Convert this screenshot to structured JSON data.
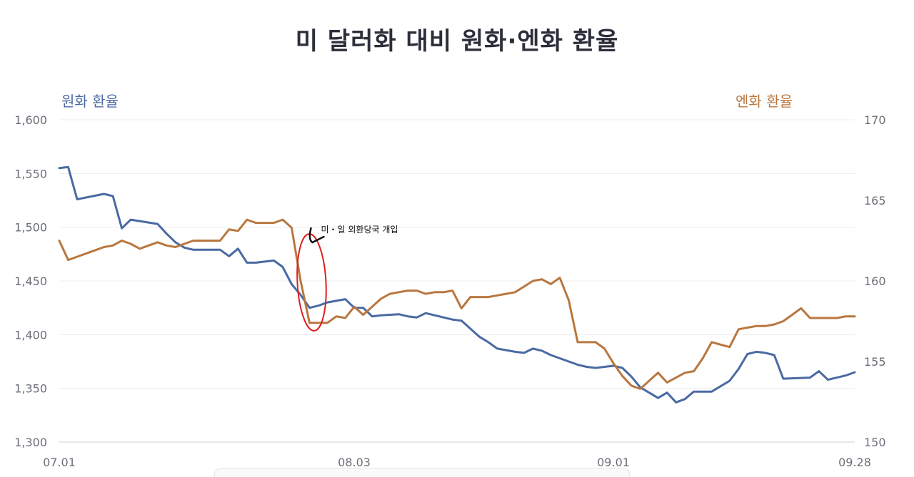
{
  "chart_data": {
    "type": "line",
    "title": "미 달러화 대비 원화·엔화 환율",
    "ylabel_left": "원화 환율",
    "ylabel_right": "엔화 환율",
    "ylim_left": [
      1300,
      1600
    ],
    "ylim_right": [
      150,
      170
    ],
    "yticks_left": [
      "1,600",
      "1,550",
      "1,500",
      "1,450",
      "1,400",
      "1,350",
      "1,300"
    ],
    "yticks_right": [
      "170",
      "165",
      "160",
      "155",
      "150"
    ],
    "xlim": [
      0,
      89
    ],
    "xticks": [
      {
        "label": "07.01",
        "x": 0
      },
      {
        "label": "08.03",
        "x": 33
      },
      {
        "label": "09.01",
        "x": 62
      },
      {
        "label": "09.28",
        "x": 89
      }
    ],
    "grid": true,
    "colors": {
      "krw": "#4a6aa3",
      "jpy": "#b9773f",
      "highlight": "#e02020"
    },
    "annotation": {
      "text": "미・일 외환당국 개입",
      "x": 28,
      "y_jpy": 162.5
    },
    "series": [
      {
        "name": "원화 환율",
        "axis": "left",
        "x": [
          0,
          1,
          2,
          5,
          6,
          7,
          8,
          11,
          12,
          13,
          14,
          15,
          17,
          18,
          19,
          20,
          21,
          22,
          23,
          24,
          25,
          26,
          27,
          28,
          29,
          30,
          32,
          33,
          34,
          35,
          36,
          38,
          39,
          40,
          41,
          44,
          45,
          47,
          48,
          49,
          51,
          52,
          53,
          54,
          55,
          58,
          59,
          60,
          62,
          63,
          64,
          65,
          67,
          68,
          69,
          70,
          71,
          72,
          73,
          75,
          76,
          77,
          78,
          79,
          80,
          81,
          84,
          85,
          86,
          87,
          88,
          89
        ],
        "values": [
          1555,
          1556,
          1526,
          1531,
          1529,
          1499,
          1507,
          1503,
          1494,
          1486,
          1481,
          1479,
          1479,
          1479,
          1473,
          1480,
          1467,
          1467,
          1468,
          1469,
          1463,
          1447,
          1437,
          1425,
          1427,
          1430,
          1433,
          1425,
          1425,
          1417,
          1418,
          1419,
          1417,
          1416,
          1420,
          1414,
          1413,
          1398,
          1393,
          1387,
          1384,
          1383,
          1387,
          1385,
          1381,
          1372,
          1370,
          1369,
          1371,
          1369,
          1361,
          1351,
          1341,
          1346,
          1337,
          1340,
          1347,
          1347,
          1347,
          1357,
          1368,
          1382,
          1384,
          1383,
          1381,
          1359,
          1360,
          1366,
          1358,
          1360,
          1362,
          1365
        ]
      },
      {
        "name": "엔화 환율",
        "axis": "right",
        "x": [
          0,
          1,
          2,
          5,
          6,
          7,
          8,
          9,
          10,
          11,
          12,
          13,
          14,
          15,
          16,
          17,
          18,
          19,
          20,
          21,
          22,
          23,
          24,
          25,
          26,
          27,
          28,
          29,
          30,
          31,
          32,
          33,
          34,
          35,
          36,
          37,
          38,
          39,
          40,
          41,
          42,
          43,
          44,
          45,
          46,
          47,
          48,
          49,
          50,
          51,
          53,
          54,
          55,
          56,
          57,
          58,
          60,
          61,
          62,
          63,
          64,
          65,
          67,
          68,
          69,
          70,
          71,
          72,
          73,
          75,
          76,
          77,
          78,
          79,
          80,
          81,
          82,
          83,
          84,
          85,
          86,
          87,
          88,
          89
        ],
        "values": [
          162.5,
          161.3,
          161.5,
          162.1,
          162.2,
          162.5,
          162.3,
          162.0,
          162.2,
          162.4,
          162.2,
          162.1,
          162.3,
          162.5,
          162.5,
          162.5,
          162.5,
          163.2,
          163.1,
          163.8,
          163.6,
          163.6,
          163.6,
          163.8,
          163.3,
          160.0,
          157.4,
          157.4,
          157.4,
          157.8,
          157.7,
          158.4,
          157.9,
          158.4,
          158.9,
          159.2,
          159.3,
          159.4,
          159.4,
          159.2,
          159.3,
          159.3,
          159.4,
          158.3,
          159.0,
          159.0,
          159.0,
          159.1,
          159.2,
          159.3,
          160.0,
          160.1,
          159.8,
          160.2,
          158.8,
          156.2,
          156.2,
          155.8,
          154.9,
          154.1,
          153.5,
          153.3,
          154.3,
          153.7,
          154.0,
          154.3,
          154.4,
          155.2,
          156.2,
          155.9,
          157.0,
          157.1,
          157.2,
          157.2,
          157.3,
          157.5,
          157.9,
          158.3,
          157.7,
          157.7,
          157.7,
          157.7,
          157.8,
          157.8
        ]
      }
    ]
  }
}
